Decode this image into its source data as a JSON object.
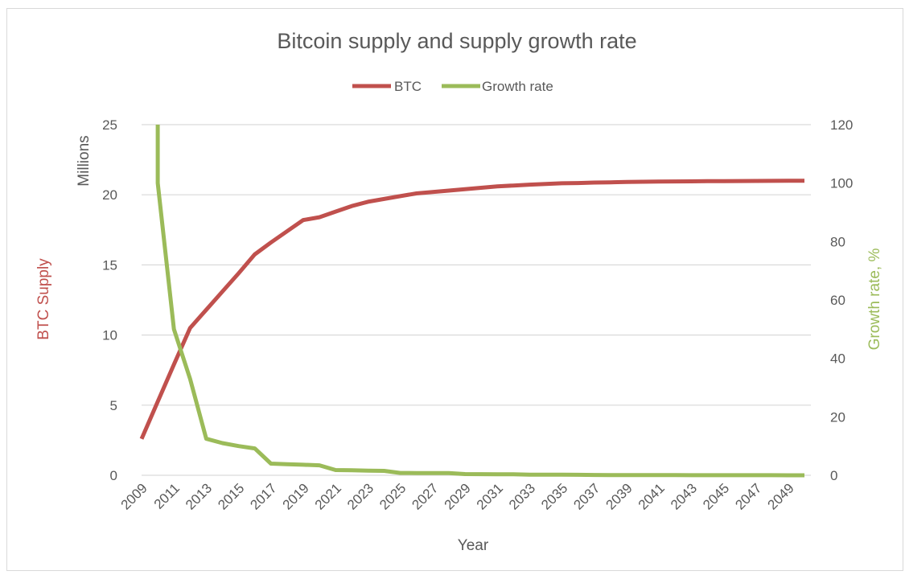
{
  "chart_data": {
    "type": "line",
    "title": "Bitcoin supply and supply growth rate",
    "xlabel": "Year",
    "ylabel_left": "BTC Supply",
    "ylabel_left_unit": "Millions",
    "ylabel_right": "Growth rate, %",
    "ylim_left": [
      0,
      25
    ],
    "ylim_right": [
      0,
      120
    ],
    "yticks_left": [
      "0",
      "5",
      "10",
      "15",
      "20",
      "25"
    ],
    "yticks_right": [
      "0",
      "20",
      "40",
      "60",
      "80",
      "100",
      "120"
    ],
    "xticks": [
      "2009",
      "2011",
      "2013",
      "2015",
      "2017",
      "2019",
      "2021",
      "2023",
      "2025",
      "2027",
      "2029",
      "2031",
      "2033",
      "2035",
      "2037",
      "2039",
      "2041",
      "2043",
      "2045",
      "2047",
      "2049"
    ],
    "legend_position": "top",
    "grid": true,
    "colors": {
      "btc": "#c0504d",
      "growth": "#9bbb59",
      "grid": "#d9d9d9",
      "text": "#595959"
    },
    "x": [
      2009,
      2010,
      2011,
      2012,
      2013,
      2014,
      2015,
      2016,
      2017,
      2018,
      2019,
      2020,
      2021,
      2022,
      2023,
      2024,
      2025,
      2026,
      2027,
      2028,
      2029,
      2030,
      2031,
      2032,
      2033,
      2034,
      2035,
      2036,
      2037,
      2038,
      2039,
      2040,
      2041,
      2042,
      2043,
      2044,
      2045,
      2046,
      2047,
      2048,
      2049,
      2050
    ],
    "series": [
      {
        "name": "BTC",
        "axis": "left",
        "values": [
          2.6,
          5.25,
          7.9,
          10.5,
          11.8,
          13.1,
          14.4,
          15.75,
          16.6,
          17.4,
          18.2,
          18.4,
          18.8,
          19.2,
          19.5,
          19.7,
          19.9,
          20.1,
          20.2,
          20.3,
          20.4,
          20.5,
          20.6,
          20.66,
          20.72,
          20.77,
          20.82,
          20.84,
          20.87,
          20.89,
          20.91,
          20.93,
          20.94,
          20.95,
          20.96,
          20.97,
          20.975,
          20.98,
          20.985,
          20.99,
          20.995,
          21.0
        ]
      },
      {
        "name": "Growth rate",
        "axis": "right",
        "values": [
          null,
          100,
          50,
          33,
          12.5,
          11,
          10,
          9.2,
          4,
          3.8,
          3.6,
          3.4,
          1.8,
          1.7,
          1.6,
          1.5,
          0.8,
          0.78,
          0.76,
          0.74,
          0.4,
          0.38,
          0.36,
          0.34,
          0.2,
          0.19,
          0.18,
          0.17,
          0.1,
          0.09,
          0.08,
          0.07,
          0.05,
          0.045,
          0.04,
          0.035,
          0.02,
          0.02,
          0.02,
          0.02,
          0.01,
          0.01
        ],
        "clipped_start": {
          "x": 2010,
          "value": 120
        }
      }
    ]
  }
}
